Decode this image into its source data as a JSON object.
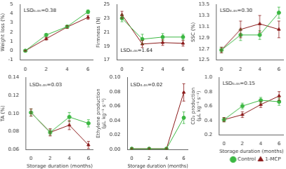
{
  "chart_data": [
    {
      "type": "line",
      "annotation": "LSD₀.₀₅=0.38",
      "ylabel": "Weight loss (%)",
      "x": [
        0,
        2,
        4,
        6
      ],
      "xlim": [
        -0.5,
        6.5
      ],
      "xticks": [
        0,
        2,
        4,
        6
      ],
      "ylim": [
        -1,
        5
      ],
      "yticks": [
        -1,
        0,
        1,
        2,
        3,
        4,
        5
      ],
      "grid": false,
      "series": [
        {
          "name": "Control",
          "color": "#3cb843",
          "marker": "circle",
          "values": [
            0.0,
            1.7,
            2.6,
            4.2
          ],
          "errors": [
            0.05,
            0.15,
            0.15,
            0.2
          ]
        },
        {
          "name": "1-MCP",
          "color": "#8b1a1a",
          "marker": "triangle",
          "values": [
            0.0,
            1.3,
            2.55,
            3.6
          ],
          "errors": [
            0.05,
            0.15,
            0.15,
            0.2
          ]
        }
      ]
    },
    {
      "type": "line",
      "annotation": "LSD₀.₀₅=1.64",
      "ylabel": "Firmness (N)",
      "x": [
        0,
        2,
        4,
        6
      ],
      "xlim": [
        -0.5,
        6.5
      ],
      "xticks": [
        0,
        2,
        4,
        6
      ],
      "ylim": [
        17,
        25
      ],
      "yticks": [
        17,
        19,
        21,
        23,
        25
      ],
      "grid": false,
      "series": [
        {
          "name": "Control",
          "color": "#3cb843",
          "marker": "circle",
          "values": [
            23.0,
            20.0,
            20.3,
            20.3
          ],
          "errors": [
            0.5,
            0.7,
            0.5,
            0.4
          ]
        },
        {
          "name": "1-MCP",
          "color": "#8b1a1a",
          "marker": "triangle",
          "values": [
            23.5,
            19.3,
            19.5,
            19.4
          ],
          "errors": [
            0.5,
            0.5,
            0.4,
            0.4
          ]
        }
      ]
    },
    {
      "type": "line",
      "annotation": "LSD₀.₀₅=0.30",
      "ylabel": "SSC (%)",
      "x": [
        0,
        2,
        4,
        6
      ],
      "xlim": [
        -0.5,
        6.5
      ],
      "xticks": [
        0,
        2,
        4,
        6
      ],
      "ylim": [
        12.5,
        13.5
      ],
      "yticks": [
        12.5,
        12.7,
        12.9,
        13.1,
        13.3,
        13.5
      ],
      "grid": false,
      "series": [
        {
          "name": "Control",
          "color": "#3cb843",
          "marker": "circle",
          "values": [
            12.68,
            12.95,
            12.95,
            13.35
          ],
          "errors": [
            0.05,
            0.1,
            0.08,
            0.1
          ]
        },
        {
          "name": "1-MCP",
          "color": "#8b1a1a",
          "marker": "triangle",
          "values": [
            12.68,
            13.05,
            13.15,
            13.05
          ],
          "errors": [
            0.05,
            0.15,
            0.15,
            0.15
          ]
        }
      ]
    },
    {
      "type": "line",
      "annotation": "LSD₀.₀₅=0.03",
      "ylabel": "TA (%)",
      "xlabel": "Storage duration (months)",
      "x": [
        0,
        2,
        4,
        6
      ],
      "xlim": [
        -0.5,
        6.5
      ],
      "xticks": [
        0,
        2,
        4,
        6
      ],
      "ylim": [
        0.06,
        0.14
      ],
      "yticks": [
        0.06,
        0.08,
        {
          "value": 0.1,
          "label": "0.10"
        },
        0.12,
        0.14
      ],
      "grid": false,
      "series": [
        {
          "name": "Control",
          "color": "#3cb843",
          "marker": "circle",
          "values": [
            0.101,
            0.079,
            0.096,
            0.089
          ],
          "errors": [
            0.004,
            0.003,
            0.005,
            0.004
          ]
        },
        {
          "name": "1-MCP",
          "color": "#8b1a1a",
          "marker": "triangle",
          "values": [
            0.101,
            0.079,
            0.087,
            0.065
          ],
          "errors": [
            0.004,
            0.004,
            0.005,
            0.004
          ]
        }
      ]
    },
    {
      "type": "line",
      "annotation": "LSD₀.₀₅=0.02",
      "ylabel": "Ethylene production\n(μL kg⁻¹ s⁻¹)",
      "xlabel": "Storage duration (months)",
      "x": [
        0,
        2,
        4,
        6
      ],
      "xlim": [
        -0.5,
        6.5
      ],
      "xticks": [
        0,
        2,
        4,
        6
      ],
      "ylim": [
        0,
        0.1
      ],
      "yticks": [
        {
          "value": 0,
          "label": "0.00"
        },
        0.02,
        0.04,
        0.06,
        0.08,
        {
          "value": 0.1,
          "label": "0.10"
        }
      ],
      "grid": false,
      "series": [
        {
          "name": "Control",
          "color": "#3cb843",
          "marker": "circle",
          "values": [
            0.001,
            0.001,
            0.001,
            0.044
          ],
          "errors": [
            0.001,
            0.001,
            0.001,
            0.008
          ]
        },
        {
          "name": "1-MCP",
          "color": "#8b1a1a",
          "marker": "triangle",
          "values": [
            0.001,
            0.001,
            0.001,
            0.079
          ],
          "errors": [
            0.001,
            0.001,
            0.001,
            0.012
          ]
        }
      ]
    },
    {
      "type": "line",
      "annotation": "LSD₀.₀₅=0.15",
      "ylabel": "CO₂ production\n(μL kg⁻¹ s⁻¹)",
      "xlabel": "Storage duration (months)",
      "x": [
        0,
        2,
        4,
        6
      ],
      "xlim": [
        -0.5,
        6.5
      ],
      "xticks": [
        0,
        2,
        4,
        6
      ],
      "ylim": [
        0.2,
        1
      ],
      "yticks": [
        0.2,
        0.4,
        0.6,
        0.8,
        {
          "value": 1,
          "label": "1.0"
        }
      ],
      "grid": false,
      "legend": "lower right",
      "series": [
        {
          "name": "Control",
          "color": "#3cb843",
          "marker": "circle",
          "values": [
            0.41,
            0.6,
            0.68,
            0.66
          ],
          "errors": [
            0.03,
            0.04,
            0.04,
            0.05
          ]
        },
        {
          "name": "1-MCP",
          "color": "#8b1a1a",
          "marker": "triangle",
          "values": [
            0.41,
            0.48,
            0.62,
            0.74
          ],
          "errors": [
            0.03,
            0.04,
            0.04,
            0.06
          ]
        }
      ]
    }
  ]
}
